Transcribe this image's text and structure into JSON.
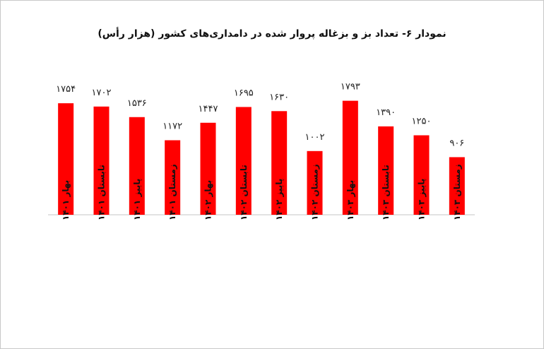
{
  "chart_data": {
    "type": "bar",
    "title": "نمودار ۶- تعداد بز و بزغاله پروار شده در دامداری‌های کشور (هزار رأس)",
    "categories": [
      "بهار ۱۴۰۱",
      "تابستان ۱۴۰۱",
      "پاییز ۱۴۰۱",
      "زمستان ۱۴۰۱",
      "بهار ۱۴۰۲",
      "تابستان ۱۴۰۲",
      "پاییز ۱۴۰۲",
      "زمستان ۱۴۰۲",
      "بهار ۱۴۰۳",
      "تابستان ۱۴۰۳",
      "پاییز ۱۴۰۳",
      "زمستان ۱۴۰۳"
    ],
    "values": [
      1754,
      1702,
      1536,
      1172,
      1447,
      1695,
      1630,
      1002,
      1793,
      1390,
      1250,
      906
    ],
    "value_labels": [
      "۱۷۵۴",
      "۱۷۰۲",
      "۱۵۳۶",
      "۱۱۷۲",
      "۱۴۴۷",
      "۱۶۹۵",
      "۱۶۳۰",
      "۱۰۰۲",
      "۱۷۹۳",
      "۱۳۹۰",
      "۱۲۵۰",
      "۹۰۶"
    ],
    "xlabel": "",
    "ylabel": "",
    "ylim": [
      0,
      1800
    ],
    "grid": false,
    "bar_color": "#ff0000",
    "axis_color": "#d9d9d9"
  }
}
